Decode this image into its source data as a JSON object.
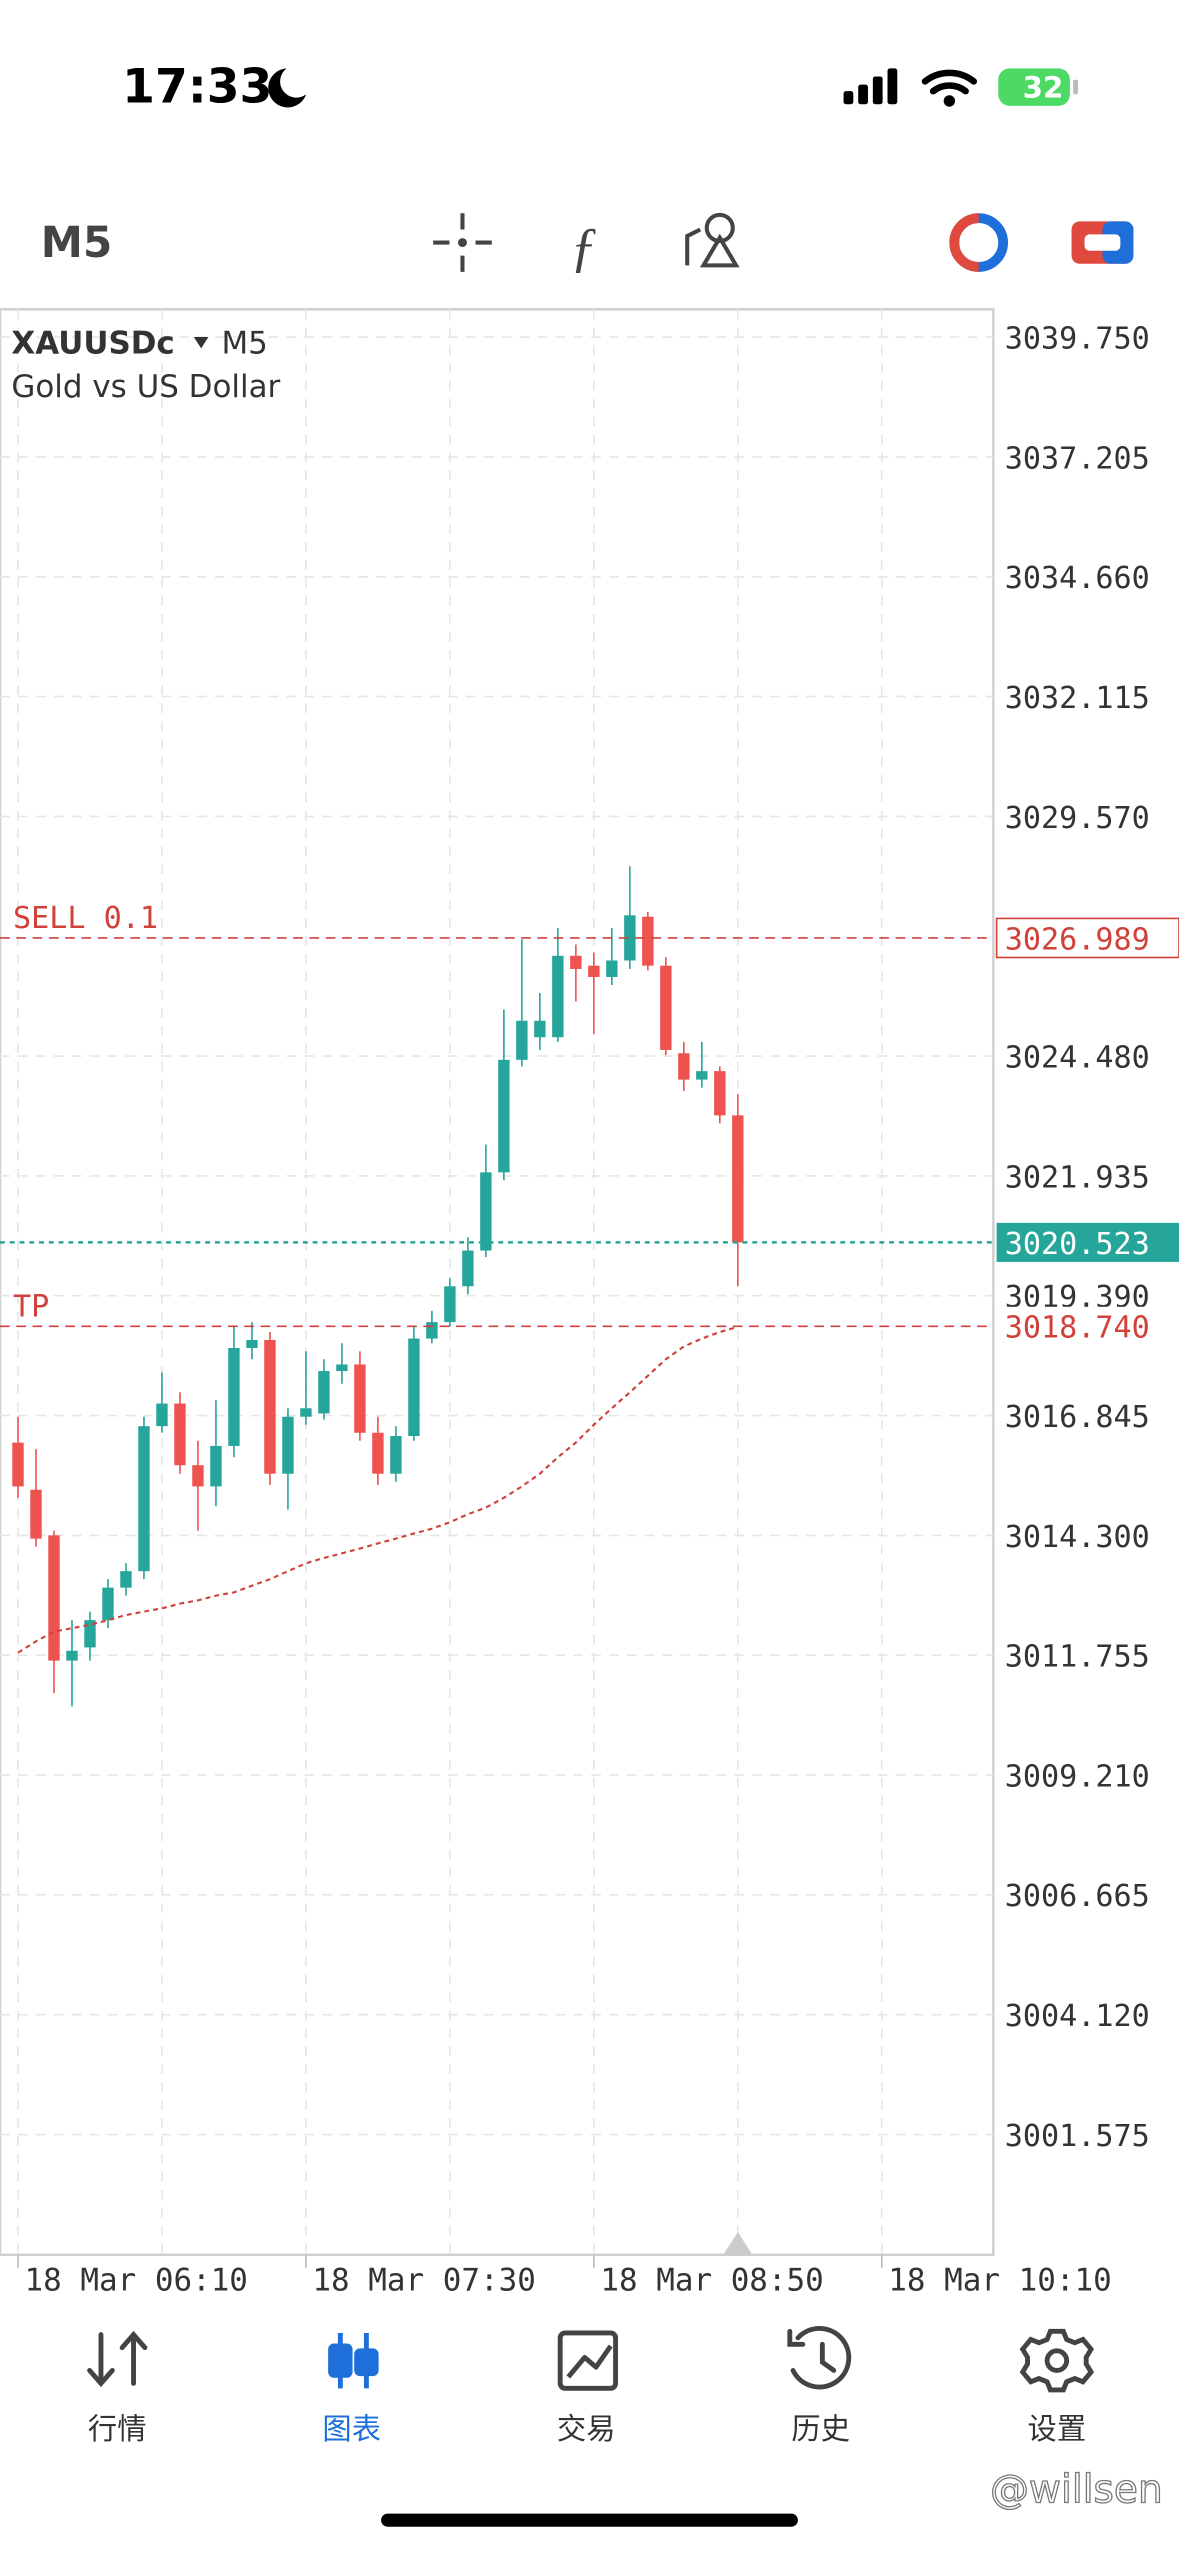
{
  "status_bar": {
    "time": "17:33",
    "battery": "32"
  },
  "toolbar": {
    "timeframe": "M5"
  },
  "chart_data": {
    "type": "candlestick",
    "symbol": "XAUUSDc",
    "timeframe": "M5",
    "description": "Gold vs US Dollar",
    "x": [
      "18 Mar 06:10",
      "18 Mar 06:15",
      "18 Mar 06:20",
      "18 Mar 06:25",
      "18 Mar 06:30",
      "18 Mar 06:35",
      "18 Mar 06:40",
      "18 Mar 06:45",
      "18 Mar 06:50",
      "18 Mar 06:55",
      "18 Mar 07:00",
      "18 Mar 07:05",
      "18 Mar 07:10",
      "18 Mar 07:15",
      "18 Mar 07:20",
      "18 Mar 07:25",
      "18 Mar 07:30",
      "18 Mar 07:35",
      "18 Mar 07:40",
      "18 Mar 07:45",
      "18 Mar 07:50",
      "18 Mar 07:55",
      "18 Mar 08:00",
      "18 Mar 08:05",
      "18 Mar 08:10",
      "18 Mar 08:15",
      "18 Mar 08:20",
      "18 Mar 08:25",
      "18 Mar 08:30",
      "18 Mar 08:35",
      "18 Mar 08:40",
      "18 Mar 08:45",
      "18 Mar 08:50",
      "18 Mar 08:55",
      "18 Mar 09:00",
      "18 Mar 09:05",
      "18 Mar 09:10",
      "18 Mar 09:15",
      "18 Mar 09:20",
      "18 Mar 09:25",
      "18 Mar 09:30"
    ],
    "open": [
      3016.27,
      3015.27,
      3014.3,
      3011.64,
      3011.92,
      3012.5,
      3013.19,
      3013.54,
      3016.62,
      3017.1,
      3015.79,
      3015.34,
      3016.2,
      3018.28,
      3018.45,
      3015.61,
      3016.82,
      3016.89,
      3017.79,
      3017.93,
      3016.48,
      3015.61,
      3016.41,
      3018.48,
      3018.83,
      3019.59,
      3020.35,
      3022.01,
      3024.4,
      3024.88,
      3024.88,
      3026.61,
      3026.4,
      3026.16,
      3026.51,
      3027.44,
      3026.4,
      3024.54,
      3023.98,
      3024.16,
      3023.22
    ],
    "high": [
      3016.82,
      3016.13,
      3014.4,
      3012.5,
      3012.68,
      3013.37,
      3013.71,
      3016.82,
      3017.76,
      3017.34,
      3016.31,
      3017.17,
      3018.73,
      3018.83,
      3018.62,
      3017.0,
      3018.21,
      3018.04,
      3018.38,
      3018.21,
      3016.82,
      3016.62,
      3018.73,
      3019.07,
      3019.76,
      3020.63,
      3022.6,
      3025.47,
      3026.96,
      3025.82,
      3027.2,
      3026.85,
      3026.68,
      3027.2,
      3028.51,
      3027.54,
      3026.58,
      3024.78,
      3024.78,
      3024.26,
      3023.67
    ],
    "low": [
      3015.1,
      3014.06,
      3010.95,
      3010.67,
      3011.64,
      3012.33,
      3013.02,
      3013.37,
      3016.48,
      3015.61,
      3014.4,
      3014.92,
      3015.96,
      3018.04,
      3015.37,
      3014.85,
      3016.65,
      3016.76,
      3017.52,
      3016.31,
      3015.37,
      3015.44,
      3016.31,
      3018.38,
      3018.73,
      3019.42,
      3020.21,
      3021.84,
      3024.26,
      3024.61,
      3024.78,
      3025.64,
      3024.95,
      3025.99,
      3026.33,
      3026.3,
      3024.5,
      3023.74,
      3023.81,
      3023.05,
      3019.59
    ],
    "close": [
      3015.34,
      3014.23,
      3011.64,
      3011.85,
      3012.5,
      3013.19,
      3013.54,
      3016.62,
      3017.1,
      3015.79,
      3015.34,
      3016.2,
      3018.28,
      3018.45,
      3015.61,
      3016.82,
      3017.0,
      3017.79,
      3017.93,
      3016.48,
      3015.61,
      3016.41,
      3018.48,
      3018.83,
      3019.59,
      3020.35,
      3022.01,
      3024.4,
      3025.23,
      3025.23,
      3026.61,
      3026.33,
      3026.16,
      3026.51,
      3027.47,
      3026.4,
      3024.61,
      3023.98,
      3024.16,
      3023.22,
      3020.523
    ],
    "up_color": "#26a69a",
    "down_color": "#ef5350",
    "ma": {
      "color": "#d0413a",
      "values": [
        3011.81,
        3012.05,
        3012.26,
        3012.33,
        3012.4,
        3012.5,
        3012.61,
        3012.68,
        3012.75,
        3012.85,
        3012.92,
        3013.02,
        3013.09,
        3013.23,
        3013.37,
        3013.54,
        3013.71,
        3013.82,
        3013.92,
        3014.02,
        3014.13,
        3014.23,
        3014.34,
        3014.44,
        3014.58,
        3014.75,
        3014.89,
        3015.1,
        3015.34,
        3015.61,
        3015.96,
        3016.27,
        3016.65,
        3017.0,
        3017.34,
        3017.69,
        3018.04,
        3018.31,
        3018.48,
        3018.62,
        3018.73
      ]
    },
    "xlim": [
      "18 Mar 06:05",
      "18 Mar 10:41"
    ],
    "xticks": [
      "18 Mar 06:10",
      "18 Mar 07:30",
      "18 Mar 08:50",
      "18 Mar 10:10"
    ],
    "ylim": [
      2999.02,
      3040.34
    ],
    "yticks": [
      {
        "value": 3039.75,
        "label": "3039.750"
      },
      3037.205,
      {
        "value": 3034.66,
        "label": "3034.660"
      },
      3032.115,
      {
        "value": 3029.57,
        "label": "3029.570"
      },
      {
        "value": 3024.48,
        "label": "3024.480"
      },
      3021.935,
      {
        "value": 3019.39,
        "label": "3019.390"
      },
      3016.845,
      {
        "value": 3014.3,
        "label": "3014.300"
      },
      3011.755,
      {
        "value": 3009.21,
        "label": "3009.210"
      },
      3006.665,
      {
        "value": 3004.12,
        "label": "3004.120"
      },
      3001.575
    ],
    "grid": true,
    "order_lines": [
      {
        "name": "SELL 0.1",
        "value": 3026.989,
        "label": "3026.989",
        "color": "#d0413a"
      },
      {
        "name": "TP",
        "value": 3018.74,
        "label": "3018.740",
        "color": "#d0413a"
      }
    ],
    "current_price": {
      "value": 3020.523,
      "label": "3020.523",
      "color": "#26a69a"
    }
  },
  "tab_bar": {
    "tabs": [
      "行情",
      "图表",
      "交易",
      "历史",
      "设置"
    ],
    "active": 1
  },
  "watermark": "@willsen"
}
